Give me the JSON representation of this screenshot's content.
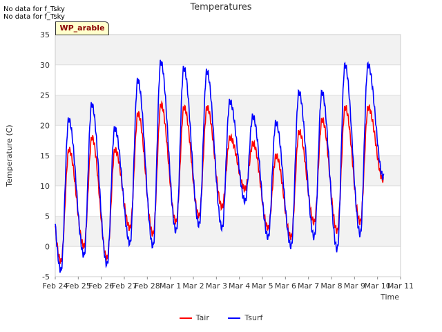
{
  "messages": [
    "No data for f_Tsky",
    "No data for f_Tsky"
  ],
  "badge": "WP_arable",
  "chart_data": {
    "type": "line",
    "title": "Temperatures",
    "xlabel": "Time",
    "ylabel": "Temperature (C)",
    "ylim": [
      -5,
      35
    ],
    "yticks": [
      -5,
      0,
      5,
      10,
      15,
      20,
      25,
      30,
      35
    ],
    "xlim": [
      "Feb 24",
      "Mar 11"
    ],
    "xticks": [
      "Feb 24",
      "Feb 25",
      "Feb 26",
      "Feb 27",
      "Feb 28",
      "Mar 1",
      "Mar 2",
      "Mar 3",
      "Mar 4",
      "Mar 5",
      "Mar 6",
      "Mar 7",
      "Mar 8",
      "Mar 9",
      "Mar 10",
      "Mar 11"
    ],
    "grid": true,
    "legend_position": "bottom-center",
    "daily": [
      {
        "date": "Feb 24",
        "tair_min": -2.5,
        "tair_max": 16,
        "tsurf_min": -4,
        "tsurf_max": 21
      },
      {
        "date": "Feb 25",
        "tair_min": 0,
        "tair_max": 18,
        "tsurf_min": -1.5,
        "tsurf_max": 23.5
      },
      {
        "date": "Feb 26",
        "tair_min": -2,
        "tair_max": 16,
        "tsurf_min": -3,
        "tsurf_max": 19.5
      },
      {
        "date": "Feb 27",
        "tair_min": 3,
        "tair_max": 22,
        "tsurf_min": 0.5,
        "tsurf_max": 27.5
      },
      {
        "date": "Feb 28",
        "tair_min": 2,
        "tair_max": 23.5,
        "tsurf_min": 0,
        "tsurf_max": 30.5
      },
      {
        "date": "Mar 1",
        "tair_min": 4,
        "tair_max": 23,
        "tsurf_min": 2.5,
        "tsurf_max": 29.5
      },
      {
        "date": "Mar 2",
        "tair_min": 5,
        "tair_max": 23,
        "tsurf_min": 3.5,
        "tsurf_max": 29
      },
      {
        "date": "Mar 3",
        "tair_min": 6.5,
        "tair_max": 18,
        "tsurf_min": 3,
        "tsurf_max": 24
      },
      {
        "date": "Mar 4",
        "tair_min": 9.5,
        "tair_max": 17,
        "tsurf_min": 7.5,
        "tsurf_max": 21.5
      },
      {
        "date": "Mar 5",
        "tair_min": 3,
        "tair_max": 15,
        "tsurf_min": 1.5,
        "tsurf_max": 20.5
      },
      {
        "date": "Mar 6",
        "tair_min": 1.5,
        "tair_max": 19,
        "tsurf_min": 0,
        "tsurf_max": 25.5
      },
      {
        "date": "Mar 7",
        "tair_min": 4,
        "tair_max": 21,
        "tsurf_min": 1.5,
        "tsurf_max": 25.5
      },
      {
        "date": "Mar 8",
        "tair_min": 2.5,
        "tair_max": 23,
        "tsurf_min": -0.5,
        "tsurf_max": 30
      },
      {
        "date": "Mar 9",
        "tair_min": 4,
        "tair_max": 23,
        "tsurf_min": 2,
        "tsurf_max": 30
      },
      {
        "date": "Mar 10",
        "tair_min": 11,
        "tair_max": 11,
        "tsurf_min": 11.5,
        "tsurf_max": 11.5
      }
    ],
    "series": [
      {
        "name": "Tair",
        "color": "#ff0000"
      },
      {
        "name": "Tsurf",
        "color": "#0000ff"
      }
    ]
  }
}
